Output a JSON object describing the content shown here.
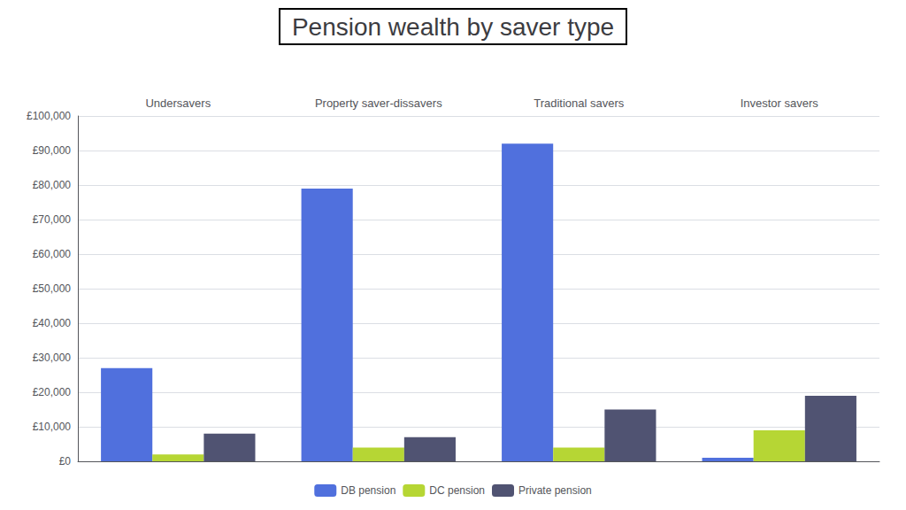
{
  "chart_data": {
    "type": "bar",
    "title": "Pension wealth by saver type",
    "categories": [
      "Undersavers",
      "Property saver-dissavers",
      "Traditional savers",
      "Investor savers"
    ],
    "series": [
      {
        "name": "DB pension",
        "values": [
          27000,
          79000,
          92000,
          1000
        ]
      },
      {
        "name": "DC pension",
        "values": [
          2000,
          4000,
          4000,
          9000
        ]
      },
      {
        "name": "Private pension",
        "values": [
          8000,
          7000,
          15000,
          19000
        ]
      }
    ],
    "ylim": [
      0,
      100000
    ],
    "yticks": [
      {
        "value": 0,
        "label": "£0"
      },
      {
        "value": 10000,
        "label": "£10,000"
      },
      {
        "value": 20000,
        "label": "£20,000"
      },
      {
        "value": 30000,
        "label": "£30,000"
      },
      {
        "value": 40000,
        "label": "£40,000"
      },
      {
        "value": 50000,
        "label": "£50,000"
      },
      {
        "value": 60000,
        "label": "£60,000"
      },
      {
        "value": 70000,
        "label": "£70,000"
      },
      {
        "value": 80000,
        "label": "£80,000"
      },
      {
        "value": 90000,
        "label": "£90,000"
      },
      {
        "value": 100000,
        "label": "£100,000"
      }
    ],
    "grid": true,
    "legend": "bottom"
  }
}
